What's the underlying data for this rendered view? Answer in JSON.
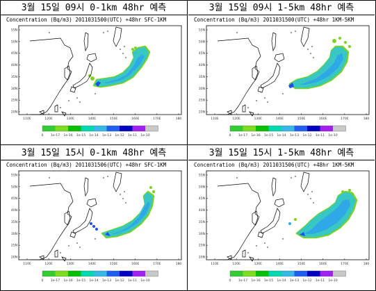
{
  "panels": [
    {
      "title": "3월 15일 09시 0-1km 48hr 예측",
      "subtitle": "Concentration (Bq/m3) 2011031500(UTC) +48hr SFC-1KM"
    },
    {
      "title": "3월 15일 09시 1-5km 48hr 예측",
      "subtitle": "Concentration (Bq/m3) 2011031500(UTC) +48hr 1KM-5KM"
    },
    {
      "title": "3월 15일 15시 0-1km 48hr 예측",
      "subtitle": "Concentration (Bq/m3) 2011031506(UTC) +48hr SFC-1KM"
    },
    {
      "title": "3월 15일 15시 1-5km 48hr 예측",
      "subtitle": "Concentration (Bq/m3) 2011031506(UTC) +48hr 1KM-5KM"
    }
  ],
  "map_axes": {
    "lat_labels": [
      "55N",
      "50N",
      "45N",
      "40N",
      "35N",
      "30N",
      "25N",
      "20N"
    ],
    "lon_labels": [
      "110E",
      "120E",
      "130E",
      "140E",
      "150E",
      "160E",
      "170E",
      "180"
    ]
  },
  "colorbar": {
    "labels": [
      "0",
      "1e-17",
      "1e-16",
      "1e-15",
      "1e-14",
      "1e-13",
      "1e-12",
      "1e-11",
      "1e-10"
    ],
    "colors": [
      "#32cd32",
      "#7ddc1f",
      "#00c000",
      "#00d9b0",
      "#38b8e6",
      "#1e5ef0",
      "#0000c0",
      "#a020f0",
      "#c8c8c8"
    ]
  },
  "plume_colors": {
    "outer": "#7dd21e",
    "mid": "#38c7c2",
    "inner": "#2fa8e8",
    "deep": "#1e50ee"
  }
}
